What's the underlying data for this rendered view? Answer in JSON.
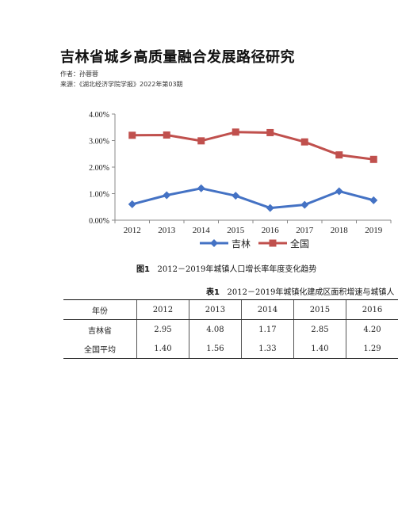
{
  "title": "吉林省城乡高质量融合发展路径研究",
  "author": "作者：孙蓉蓉",
  "source": "来源：《湖北经济学院学报》2022年第03期",
  "chart_data": {
    "type": "line",
    "categories": [
      "2012",
      "2013",
      "2014",
      "2015",
      "2016",
      "2017",
      "2018",
      "2019"
    ],
    "series": [
      {
        "name": "吉林",
        "color": "#4472C4",
        "marker": "diamond",
        "values": [
          0.6,
          0.94,
          1.2,
          0.92,
          0.46,
          0.58,
          1.09,
          0.75
        ]
      },
      {
        "name": "全国",
        "color": "#C0504D",
        "marker": "square",
        "values": [
          3.2,
          3.21,
          2.99,
          3.32,
          3.3,
          2.95,
          2.46,
          2.29
        ]
      }
    ],
    "yticks": [
      "0.00%",
      "1.00%",
      "2.00%",
      "3.00%",
      "4.00%"
    ],
    "ylim": [
      0,
      4
    ],
    "grid": false,
    "legend_position": "bottom"
  },
  "figure_caption_label": "图1",
  "figure_caption_text": "2012－2019年城镇人口增长率年度变化趋势",
  "table_caption_label": "表1",
  "table_caption_text": "2012－2019年城镇化建成区面积增速与城镇人",
  "table": {
    "header": [
      "年份",
      "2012",
      "2013",
      "2014",
      "2015",
      "2016"
    ],
    "rows": [
      [
        "吉林省",
        "2.95",
        "4.08",
        "1.17",
        "2.85",
        "4.20"
      ],
      [
        "全国平均",
        "1.40",
        "1.56",
        "1.33",
        "1.40",
        "1.29"
      ]
    ]
  }
}
